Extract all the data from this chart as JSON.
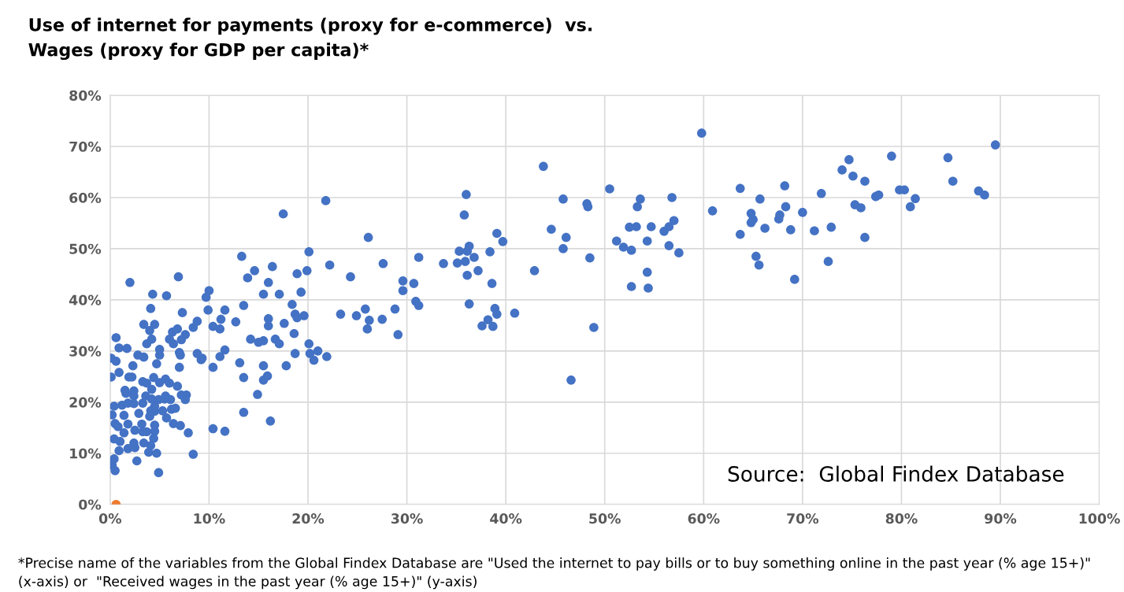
{
  "chart_data": {
    "type": "scatter",
    "title": "Use of internet for payments (proxy for e-commerce)  vs.\nWages (proxy for GDP per capita)*",
    "annotations": [
      "Source:  Global Findex Database",
      "*Precise name of the variables from the Global Findex Database are \"Used the internet to pay bills or to buy something online in the past year (% age 15+)\" (x-axis) or  \"Received wages in the past year (% age 15+)\" (y-axis)"
    ],
    "xlim": [
      0,
      100
    ],
    "ylim": [
      0,
      80
    ],
    "xticks": [
      {
        "value": 0,
        "label": "0%"
      },
      {
        "value": 10,
        "label": "10%"
      },
      {
        "value": 20,
        "label": "20%"
      },
      {
        "value": 30,
        "label": "30%"
      },
      {
        "value": 40,
        "label": "40%"
      },
      {
        "value": 50,
        "label": "50%"
      },
      {
        "value": 60,
        "label": "60%"
      },
      {
        "value": 70,
        "label": "70%"
      },
      {
        "value": 80,
        "label": "80%"
      },
      {
        "value": 90,
        "label": "90%"
      },
      {
        "value": 100,
        "label": "100%"
      }
    ],
    "yticks": [
      {
        "value": 0,
        "label": "0%"
      },
      {
        "value": 10,
        "label": "10%"
      },
      {
        "value": 20,
        "label": "20%"
      },
      {
        "value": 30,
        "label": "30%"
      },
      {
        "value": 40,
        "label": "40%"
      },
      {
        "value": 50,
        "label": "50%"
      },
      {
        "value": 60,
        "label": "60%"
      },
      {
        "value": 70,
        "label": "70%"
      },
      {
        "value": 80,
        "label": "80%"
      }
    ],
    "grid": true,
    "marker": "circle",
    "series": [
      {
        "color": "#4472c4",
        "x": [
          43.8,
          59.8,
          89.5,
          79.0,
          84.7,
          74.7,
          74.0,
          75.1,
          85.2,
          76.3,
          87.8,
          88.4,
          79.8,
          80.3,
          81.4,
          80.9,
          77.7,
          77.4,
          71.9,
          63.7,
          68.2,
          65.7,
          60.9,
          70.0,
          75.3,
          75.9,
          68.3,
          64.8,
          65.0,
          64.8,
          66.2,
          67.7,
          67.6,
          68.8,
          71.2,
          72.9,
          63.7,
          76.3,
          65.3,
          65.6,
          72.6,
          69.2,
          36.0,
          45.8,
          48.2,
          48.3,
          50.5,
          53.6,
          56.8,
          53.3,
          35.8,
          26.1,
          39.1,
          39.7,
          44.6,
          46.1,
          45.8,
          48.5,
          51.2,
          51.9,
          52.7,
          52.5,
          53.2,
          54.7,
          56.0,
          56.5,
          57.0,
          54.3,
          56.5,
          57.5,
          54.3,
          52.7,
          54.4,
          36.3,
          35.3,
          36.1,
          38.4,
          36.8,
          33.7,
          35.1,
          35.9,
          37.2,
          36.1,
          38.6,
          42.9,
          31.2,
          27.6,
          24.3,
          29.6,
          30.7,
          29.6,
          30.9,
          31.2,
          36.3,
          38.9,
          39.1,
          38.2,
          37.6,
          38.7,
          40.9,
          48.9,
          46.6,
          23.3,
          24.9,
          25.8,
          26.2,
          26.0,
          27.5,
          28.8,
          29.1,
          2.0,
          6.9,
          13.3,
          14.6,
          16.4,
          13.9,
          16.0,
          18.9,
          19.9,
          20.1,
          17.5,
          21.8,
          22.2,
          4.3,
          5.7,
          10.0,
          9.7,
          4.1,
          7.3,
          9.9,
          11.6,
          13.5,
          15.5,
          17.1,
          19.3,
          18.4,
          18.7,
          19.6,
          18.9,
          16.0,
          16.0,
          17.6,
          18.6,
          3.4,
          4.5,
          4.0,
          8.8,
          8.4,
          10.4,
          11.1,
          11.2,
          12.7,
          14.2,
          15.5,
          16.7,
          17.1,
          15.0,
          20.1,
          0.6,
          6.3,
          6.8,
          7.6,
          4.2,
          3.7,
          6.0,
          7.2,
          6.4,
          0.9,
          1.7,
          0.1,
          0.6,
          2.3,
          0.9,
          0.1,
          1.9,
          2.2,
          2.8,
          3.4,
          5.0,
          5.0,
          4.7,
          7.0,
          7.1,
          7.0,
          8.8,
          9.2,
          9.3,
          11.1,
          11.6,
          10.4,
          13.1,
          15.5,
          17.8,
          18.7,
          20.2,
          21.0,
          21.9,
          20.6,
          13.5,
          15.5,
          15.9,
          14.9,
          13.5,
          16.2,
          10.4,
          11.6,
          8.4,
          4.9,
          2.7,
          0.5,
          0.2,
          0.4,
          0.9,
          1.8,
          2.5,
          3.9,
          4.7,
          0.4,
          1.0,
          2.4,
          3.4,
          4.1,
          4.4,
          4.5,
          1.4,
          2.5,
          3.3,
          3.7,
          4.5,
          6.4,
          7.1,
          7.9,
          0.5,
          0.8,
          1.8,
          3.2,
          5.7,
          0.2,
          1.4,
          2.9,
          4.0,
          4.5,
          5.3,
          6.2,
          6.6,
          0.4,
          1.2,
          1.8,
          2.4,
          3.3,
          4.1,
          4.5,
          4.9,
          5.5,
          6.1,
          3.6,
          4.2,
          2.4,
          1.6,
          1.5,
          4.2,
          3.3,
          3.7,
          5.0,
          5.6,
          6.0,
          6.8,
          4.4,
          7.2,
          7.7,
          7.6,
          5.6,
          2.4
        ],
        "values": [
          66.1,
          72.6,
          70.3,
          68.1,
          67.8,
          67.4,
          65.4,
          64.2,
          63.2,
          63.2,
          61.3,
          60.5,
          61.5,
          61.5,
          59.8,
          58.2,
          60.5,
          60.2,
          60.8,
          61.8,
          62.3,
          59.7,
          57.4,
          57.1,
          58.6,
          58.0,
          58.2,
          56.9,
          55.7,
          55.1,
          54.0,
          56.6,
          55.8,
          53.7,
          53.5,
          54.2,
          52.8,
          52.2,
          48.5,
          46.8,
          47.5,
          44.0,
          60.6,
          59.7,
          58.8,
          58.2,
          61.7,
          59.7,
          60.0,
          58.2,
          56.6,
          52.2,
          53.0,
          51.4,
          53.8,
          52.2,
          50.0,
          48.2,
          51.5,
          50.3,
          49.7,
          54.2,
          54.3,
          54.3,
          53.4,
          54.3,
          55.5,
          51.5,
          50.6,
          49.2,
          45.4,
          42.6,
          42.3,
          50.5,
          49.5,
          49.5,
          49.4,
          48.3,
          47.1,
          47.2,
          47.5,
          45.7,
          44.8,
          43.2,
          45.7,
          48.3,
          47.1,
          44.5,
          43.7,
          43.2,
          41.8,
          39.7,
          38.9,
          39.2,
          38.3,
          37.2,
          36.1,
          34.9,
          34.8,
          37.4,
          34.6,
          24.3,
          37.2,
          36.9,
          38.2,
          36.0,
          34.3,
          36.2,
          38.2,
          33.2,
          43.4,
          44.5,
          48.5,
          45.7,
          46.5,
          44.3,
          43.4,
          45.1,
          45.7,
          49.4,
          56.8,
          59.4,
          46.8,
          41.1,
          40.8,
          41.8,
          40.5,
          38.3,
          37.5,
          38.0,
          38.0,
          38.9,
          41.1,
          41.1,
          41.5,
          39.1,
          37.2,
          36.9,
          36.5,
          36.3,
          34.9,
          35.4,
          33.4,
          35.2,
          35.2,
          34.0,
          35.8,
          34.6,
          34.8,
          34.3,
          36.2,
          35.7,
          32.3,
          32.0,
          32.3,
          31.4,
          31.7,
          31.4,
          32.6,
          33.7,
          34.3,
          33.2,
          32.3,
          31.4,
          32.3,
          32.2,
          31.4,
          30.6,
          30.5,
          28.6,
          28.0,
          27.1,
          25.8,
          24.9,
          24.9,
          24.9,
          29.2,
          28.8,
          30.3,
          29.2,
          27.5,
          29.7,
          29.2,
          26.8,
          29.5,
          28.3,
          28.6,
          28.9,
          30.2,
          26.8,
          27.7,
          27.1,
          27.1,
          29.5,
          29.5,
          30.0,
          28.9,
          28.2,
          24.8,
          24.3,
          25.1,
          21.5,
          18.0,
          16.3,
          14.8,
          14.3,
          9.8,
          6.2,
          8.5,
          6.6,
          7.7,
          8.9,
          10.5,
          10.9,
          11.1,
          10.2,
          10.0,
          12.8,
          12.3,
          12.0,
          12.0,
          11.5,
          12.9,
          14.3,
          14.0,
          14.5,
          14.2,
          14.2,
          15.5,
          15.8,
          15.4,
          14.0,
          15.8,
          15.2,
          15.7,
          15.7,
          16.9,
          17.5,
          17.4,
          17.8,
          17.2,
          18.2,
          18.3,
          18.6,
          18.8,
          19.2,
          19.4,
          19.8,
          19.7,
          19.8,
          18.3,
          19.2,
          20.5,
          20.6,
          20.5,
          21.2,
          20.6,
          21.2,
          21.7,
          22.3,
          22.5,
          24.0,
          23.7,
          23.8,
          24.5,
          23.7,
          23.1,
          24.8,
          21.4,
          21.4,
          20.5,
          21.2,
          22.2
        ]
      },
      {
        "color": "#ed7d31",
        "x": [
          0.6
        ],
        "values": [
          0
        ]
      }
    ]
  }
}
